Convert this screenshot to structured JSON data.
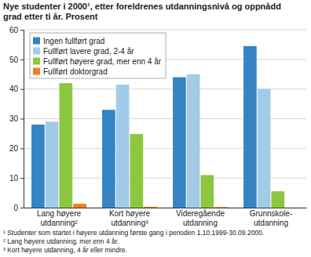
{
  "chart_data": {
    "type": "bar",
    "title": "Nye studenter i 2000¹, etter foreldrenes utdanningsnivå og oppnådd\ngrad etter ti år. Prosent",
    "categories": [
      "Lang høyere\nutdanning²",
      "Kort høyere\nutdanning³",
      "Videregående\nutdanning",
      "Grunnskole-\nutdanning"
    ],
    "series": [
      {
        "name": "Ingen fullført grad",
        "color": "#3584c4",
        "values": [
          28,
          33,
          44,
          54.5
        ]
      },
      {
        "name": "Fullført lavere grad, 2-4 år",
        "color": "#a2cbe8",
        "values": [
          29,
          41.5,
          45,
          40
        ]
      },
      {
        "name": "Fullført høyere grad, mer enn 4 år",
        "color": "#8dc63f",
        "values": [
          42,
          24.8,
          11,
          5.5
        ]
      },
      {
        "name": "Fullført doktorgrad",
        "color": "#f07f1f",
        "values": [
          1.3,
          0.3,
          0.2,
          0
        ]
      }
    ],
    "ylim": [
      0,
      60
    ],
    "yticks": [
      0,
      10,
      20,
      30,
      40,
      50,
      60
    ],
    "grid": true,
    "legend": "top-left",
    "annotations": [
      "¹ Studenter som startet i høyere utdanning første gang i perioden 1.10.1999-30.09.2000.",
      "² Lang høyere utdanning, mer enn 4 år.",
      "³ Kort høyere utdanning, 4 år eller mindre."
    ]
  }
}
